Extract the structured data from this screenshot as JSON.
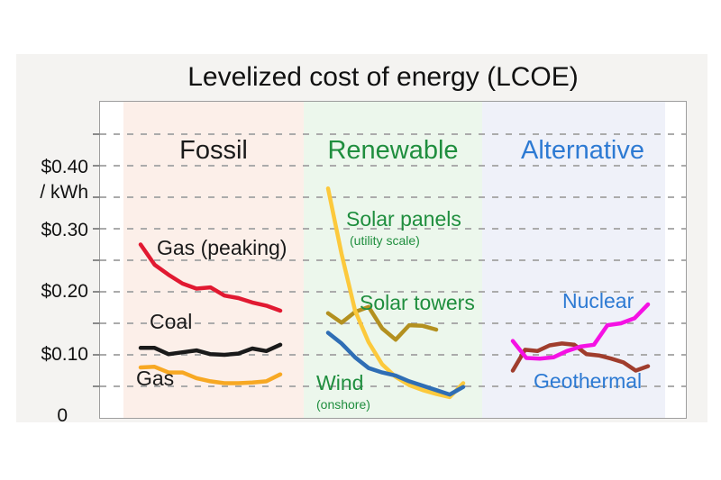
{
  "chart_data": {
    "type": "line",
    "title": "Levelized cost of energy (LCOE)",
    "ylabel": "$ / kWh",
    "y_unit_label": "/ kWh",
    "ylim": [
      0,
      0.47
    ],
    "gridline_step": 0.05,
    "grid": "dashed horizontal gridlines every $0.05",
    "legend_position": "labels drawn next to each line inside the plot",
    "y_ticks": [
      {
        "value": 0.4,
        "label": "$0.40"
      },
      {
        "value": 0.3,
        "label": "$0.30"
      },
      {
        "value": 0.2,
        "label": "$0.20"
      },
      {
        "value": 0.1,
        "label": "$0.10"
      },
      {
        "value": 0.0,
        "label": "0"
      }
    ],
    "groups": [
      {
        "name": "Fossil",
        "color": "#1a1a1a",
        "band_color": "#fcefe9",
        "series": [
          {
            "name": "Gas (peaking)",
            "color": "#e11931",
            "values": [
              0.275,
              0.243,
              0.227,
              0.213,
              0.205,
              0.207,
              0.194,
              0.19,
              0.183,
              0.178,
              0.17
            ]
          },
          {
            "name": "Coal",
            "color": "#1a1a1a",
            "values": [
              0.111,
              0.111,
              0.101,
              0.104,
              0.107,
              0.101,
              0.1,
              0.102,
              0.11,
              0.106,
              0.116
            ]
          },
          {
            "name": "Gas",
            "color": "#f7a823",
            "values": [
              0.08,
              0.081,
              0.072,
              0.072,
              0.063,
              0.058,
              0.055,
              0.055,
              0.056,
              0.058,
              0.069
            ]
          }
        ]
      },
      {
        "name": "Renewable",
        "color": "#1f8e3e",
        "band_color": "#ecf7ec",
        "series": [
          {
            "name": "Solar towers",
            "color": "#b3901f",
            "width_frac": 0.8,
            "values": [
              0.166,
              0.151,
              0.168,
              0.176,
              0.142,
              0.124,
              0.147,
              0.146,
              0.14
            ]
          },
          {
            "name": "Solar panels",
            "sublabel": "(utility scale)",
            "color": "#fcc93c",
            "values": [
              0.364,
              0.26,
              0.17,
              0.12,
              0.085,
              0.065,
              0.052,
              0.044,
              0.038,
              0.033,
              0.055
            ]
          },
          {
            "name": "Wind",
            "sublabel": "(onshore)",
            "color": "#2f6eb5",
            "values": [
              0.135,
              0.118,
              0.096,
              0.079,
              0.072,
              0.067,
              0.058,
              0.051,
              0.044,
              0.037,
              0.049
            ]
          }
        ]
      },
      {
        "name": "Alternative",
        "color": "#2d7ad3",
        "band_color": "#eff1f9",
        "series": [
          {
            "name": "Geothermal",
            "color": "#a03d2d",
            "values": [
              0.075,
              0.108,
              0.106,
              0.115,
              0.118,
              0.116,
              0.101,
              0.099,
              0.094,
              0.088,
              0.075,
              0.082
            ]
          },
          {
            "name": "Nuclear",
            "color": "#f511e4",
            "values": [
              0.122,
              0.095,
              0.094,
              0.096,
              0.106,
              0.113,
              0.116,
              0.147,
              0.15,
              0.158,
              0.18
            ]
          }
        ]
      }
    ]
  }
}
